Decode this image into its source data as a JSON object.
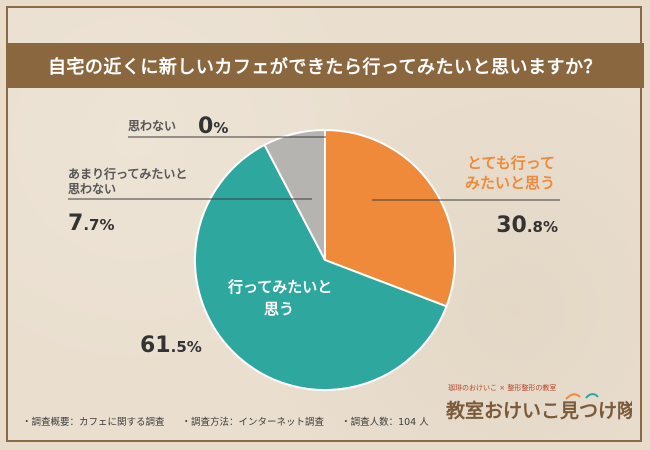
{
  "title": "自宅の近くに新しいカフェができたら行ってみたいと思いますか？",
  "chart_data": {
    "type": "pie",
    "categories": [
      "とても行ってみたいと思う",
      "行ってみたいと思う",
      "あまり行ってみたいと思わない",
      "思わない"
    ],
    "series": [
      {
        "values": [
          30.8,
          61.5,
          7.7,
          0
        ],
        "colors": [
          "#ef8a3a",
          "#2ea79f",
          "#b6b4b1",
          "#9a9a9a"
        ]
      }
    ],
    "value_labels": [
      {
        "int": "30",
        "dec": ".8",
        "pct": "%"
      },
      {
        "int": "61",
        "dec": ".5",
        "pct": "%"
      },
      {
        "int": "7",
        "dec": ".7",
        "pct": "%"
      },
      {
        "int": "0",
        "dec": "",
        "pct": "%"
      }
    ],
    "category_label_lines": [
      [
        "とても行って",
        "みたいと思う"
      ],
      [
        "行ってみたいと",
        "思う"
      ],
      [
        "あまり行ってみたいと",
        "思わない"
      ],
      [
        "思わない"
      ]
    ]
  },
  "footer": {
    "items": [
      "・調査概要：カフェに関する調査",
      "・調査方法：インターネット調査",
      "・調査人数：104 人"
    ]
  },
  "logo": {
    "top_text": "珈琲のおけいこ × 整形整形の教室",
    "main_text": "教室おけいこ見つけ隊"
  }
}
